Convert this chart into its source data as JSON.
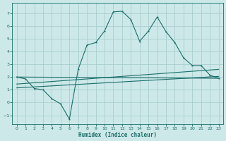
{
  "xlabel": "Humidex (Indice chaleur)",
  "bg_color": "#cce8e8",
  "grid_color": "#aacece",
  "line_color": "#1a6e6a",
  "xlim": [
    -0.5,
    23.5
  ],
  "ylim": [
    -1.7,
    7.8
  ],
  "xticks": [
    0,
    1,
    2,
    3,
    4,
    5,
    6,
    7,
    8,
    9,
    10,
    11,
    12,
    13,
    14,
    15,
    16,
    17,
    18,
    19,
    20,
    21,
    22,
    23
  ],
  "yticks": [
    -1,
    0,
    1,
    2,
    3,
    4,
    5,
    6,
    7
  ],
  "line1_x": [
    0,
    1,
    2,
    3,
    4,
    5,
    6,
    7,
    8,
    9,
    10,
    11,
    12,
    13,
    14,
    15,
    16,
    17,
    18,
    19,
    20,
    21,
    22,
    23
  ],
  "line1_y": [
    2.0,
    1.85,
    1.1,
    1.0,
    0.3,
    -0.1,
    -1.3,
    2.6,
    4.5,
    4.7,
    5.6,
    7.1,
    7.15,
    6.5,
    4.8,
    5.6,
    6.7,
    5.55,
    4.7,
    3.5,
    2.9,
    2.9,
    2.15,
    1.9
  ],
  "line2_x": [
    0,
    23
  ],
  "line2_y": [
    2.0,
    1.9
  ],
  "line3_x": [
    0,
    23
  ],
  "line3_y": [
    1.45,
    2.6
  ],
  "line4_x": [
    0,
    23
  ],
  "line4_y": [
    1.15,
    2.05
  ]
}
